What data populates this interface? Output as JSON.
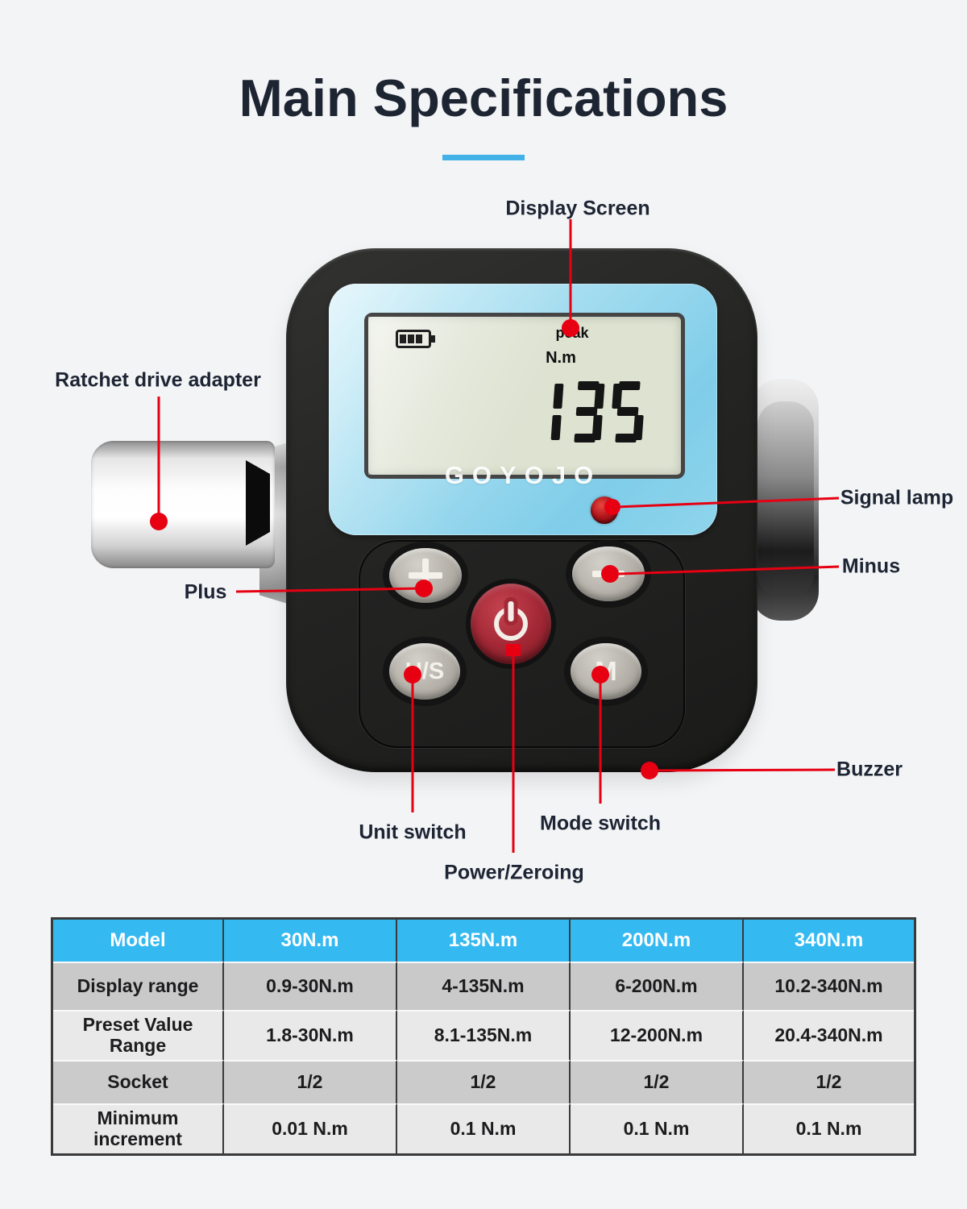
{
  "page": {
    "title": "Main Specifications"
  },
  "device": {
    "brand": "GOYOJO",
    "lcd": {
      "battery_icon": "battery-icon",
      "peak_label": "peak",
      "unit_label": "N.m",
      "value": "135"
    },
    "buttons": {
      "plus_icon": "plus-icon",
      "minus_icon": "minus-icon",
      "power_icon": "power-icon",
      "unit_switch": "U/S",
      "mode": "M"
    }
  },
  "callouts": {
    "display_screen": "Display Screen",
    "ratchet_drive_adapter": "Ratchet drive adapter",
    "signal_lamp": "Signal lamp",
    "plus": "Plus",
    "minus": "Minus",
    "unit_switch": "Unit switch",
    "mode_switch": "Mode switch",
    "power_zeroing": "Power/Zeroing",
    "buzzer": "Buzzer"
  },
  "spec_table": {
    "header": [
      "Model",
      "30N.m",
      "135N.m",
      "200N.m",
      "340N.m"
    ],
    "rows": [
      {
        "label": "Display range",
        "values": [
          "0.9-30N.m",
          "4-135N.m",
          "6-200N.m",
          "10.2-340N.m"
        ]
      },
      {
        "label": "Preset Value Range",
        "values": [
          "1.8-30N.m",
          "8.1-135N.m",
          "12-200N.m",
          "20.4-340N.m"
        ]
      },
      {
        "label": "Socket",
        "values": [
          "1/2",
          "1/2",
          "1/2",
          "1/2"
        ]
      },
      {
        "label": "Minimum increment",
        "values": [
          "0.01 N.m",
          "0.1 N.m",
          "0.1 N.m",
          "0.1 N.m"
        ]
      }
    ]
  },
  "colors": {
    "accent_red": "#e60012",
    "accent_blue": "#41b1e8",
    "title_text": "#1e2532",
    "table_header_bg": "#35b9f1",
    "table_row_dark": "#c9c9c9",
    "table_row_light": "#e9e9e9",
    "panel_blue": "#8fd4ec",
    "power_button_red": "#a32836"
  }
}
